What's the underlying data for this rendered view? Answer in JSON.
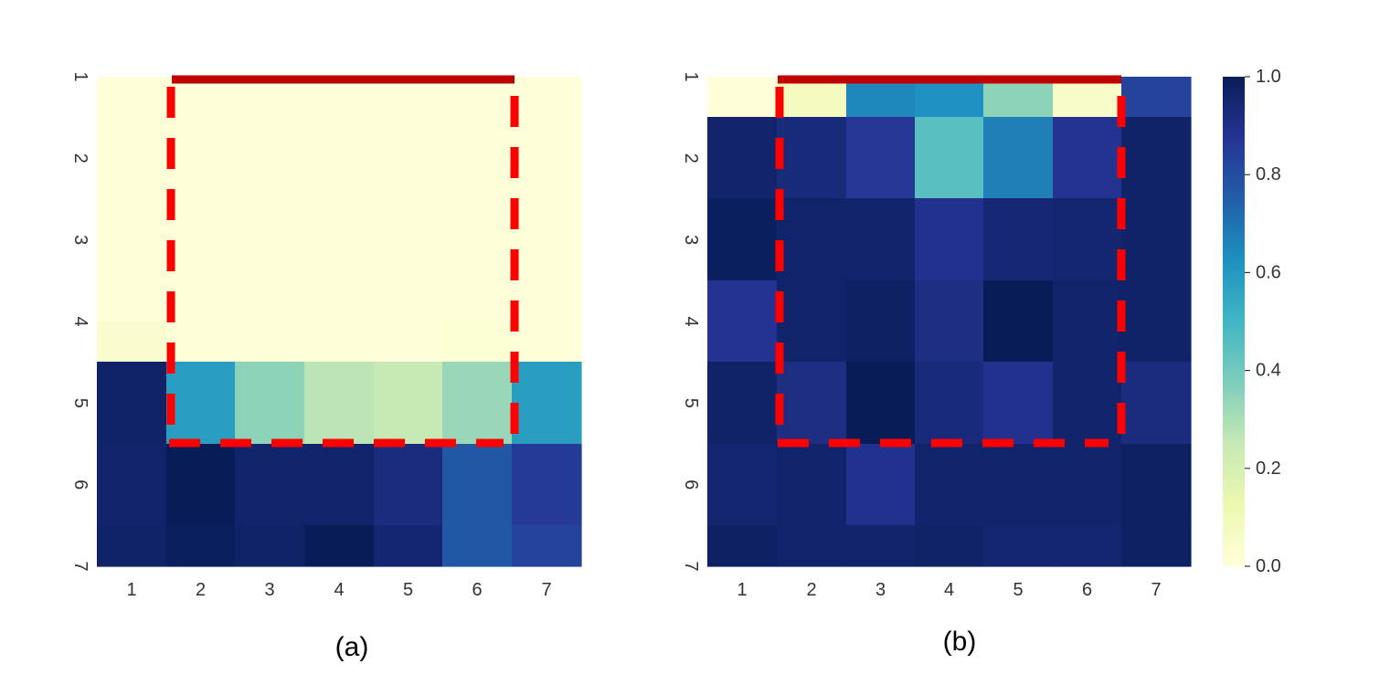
{
  "chart_data": [
    {
      "type": "heatmap",
      "caption": "(a)",
      "x_ticks": [
        "1",
        "2",
        "3",
        "4",
        "5",
        "6",
        "7"
      ],
      "y_ticks": [
        "1",
        "2",
        "3",
        "4",
        "5",
        "6",
        "7"
      ],
      "values": [
        [
          0.0,
          0.0,
          0.0,
          0.0,
          0.0,
          0.0,
          0.0
        ],
        [
          0.0,
          0.0,
          0.0,
          0.0,
          0.0,
          0.0,
          0.0
        ],
        [
          0.0,
          0.0,
          0.0,
          0.0,
          0.0,
          0.0,
          0.0
        ],
        [
          0.03,
          0.0,
          0.0,
          0.0,
          0.0,
          0.02,
          0.0
        ],
        [
          0.97,
          0.58,
          0.35,
          0.27,
          0.25,
          0.33,
          0.58
        ],
        [
          0.96,
          1.0,
          0.96,
          0.96,
          0.92,
          0.77,
          0.86
        ],
        [
          0.97,
          0.99,
          0.97,
          1.0,
          0.95,
          0.77,
          0.83
        ]
      ],
      "highlight": {
        "solid_edge": "top",
        "rows": [
          1,
          5
        ],
        "cols": [
          2,
          6
        ]
      }
    },
    {
      "type": "heatmap",
      "caption": "(b)",
      "x_ticks": [
        "1",
        "2",
        "3",
        "4",
        "5",
        "6",
        "7"
      ],
      "y_ticks": [
        "1",
        "2",
        "3",
        "4",
        "5",
        "6",
        "7"
      ],
      "values": [
        [
          0.0,
          0.08,
          0.65,
          0.62,
          0.35,
          0.05,
          0.83
        ],
        [
          0.96,
          0.93,
          0.87,
          0.45,
          0.67,
          0.88,
          0.97
        ],
        [
          0.99,
          0.96,
          0.96,
          0.89,
          0.94,
          0.95,
          0.97
        ],
        [
          0.88,
          0.96,
          0.98,
          0.91,
          1.0,
          0.96,
          0.97
        ],
        [
          0.97,
          0.91,
          1.0,
          0.93,
          0.89,
          0.96,
          0.92
        ],
        [
          0.95,
          0.96,
          0.89,
          0.96,
          0.96,
          0.96,
          0.98
        ],
        [
          0.98,
          0.96,
          0.96,
          0.97,
          0.95,
          0.95,
          0.98
        ]
      ],
      "highlight": {
        "solid_edge": "top",
        "rows": [
          1,
          5
        ],
        "cols": [
          2,
          6
        ]
      }
    }
  ],
  "colorbar": {
    "range": [
      0.0,
      1.0
    ],
    "tick_labels": [
      "0.0",
      "0.2",
      "0.4",
      "0.6",
      "0.8",
      "1.0"
    ],
    "tick_values": [
      0.0,
      0.2,
      0.4,
      0.6,
      0.8,
      1.0
    ],
    "colormap": "YlGnBu",
    "colormap_stops": [
      "#ffffd9",
      "#edf8b1",
      "#c7e9b4",
      "#7fcdbb",
      "#41b6c4",
      "#1d91c0",
      "#225ea8",
      "#253494",
      "#081d58"
    ]
  },
  "colors": {
    "highlight_solid": "#c00000",
    "highlight_dashed": "#ff0000",
    "tick_text": "#333333"
  }
}
